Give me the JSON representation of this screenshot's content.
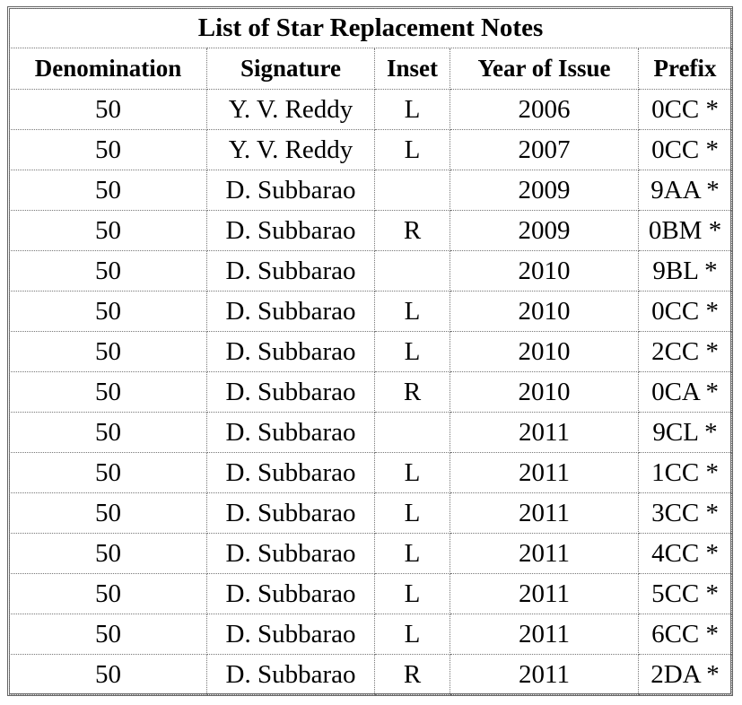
{
  "table": {
    "title": "List of Star Replacement Notes",
    "headers": [
      "Denomination",
      "Signature",
      "Inset",
      "Year of Issue",
      "Prefix"
    ],
    "rows": [
      [
        "50",
        "Y. V. Reddy",
        "L",
        "2006",
        "0CC *"
      ],
      [
        "50",
        "Y. V. Reddy",
        "L",
        "2007",
        "0CC *"
      ],
      [
        "50",
        "D. Subbarao",
        "",
        "2009",
        "9AA *"
      ],
      [
        "50",
        "D. Subbarao",
        "R",
        "2009",
        "0BM *"
      ],
      [
        "50",
        "D. Subbarao",
        "",
        "2010",
        "9BL *"
      ],
      [
        "50",
        "D. Subbarao",
        "L",
        "2010",
        "0CC *"
      ],
      [
        "50",
        "D. Subbarao",
        "L",
        "2010",
        "2CC *"
      ],
      [
        "50",
        "D. Subbarao",
        "R",
        "2010",
        "0CA *"
      ],
      [
        "50",
        "D. Subbarao",
        "",
        "2011",
        "9CL *"
      ],
      [
        "50",
        "D. Subbarao",
        "L",
        "2011",
        "1CC *"
      ],
      [
        "50",
        "D. Subbarao",
        "L",
        "2011",
        "3CC *"
      ],
      [
        "50",
        "D. Subbarao",
        "L",
        "2011",
        "4CC *"
      ],
      [
        "50",
        "D. Subbarao",
        "L",
        "2011",
        "5CC *"
      ],
      [
        "50",
        "D. Subbarao",
        "L",
        "2011",
        "6CC *"
      ],
      [
        "50",
        "D. Subbarao",
        "R",
        "2011",
        "2DA *"
      ]
    ]
  }
}
